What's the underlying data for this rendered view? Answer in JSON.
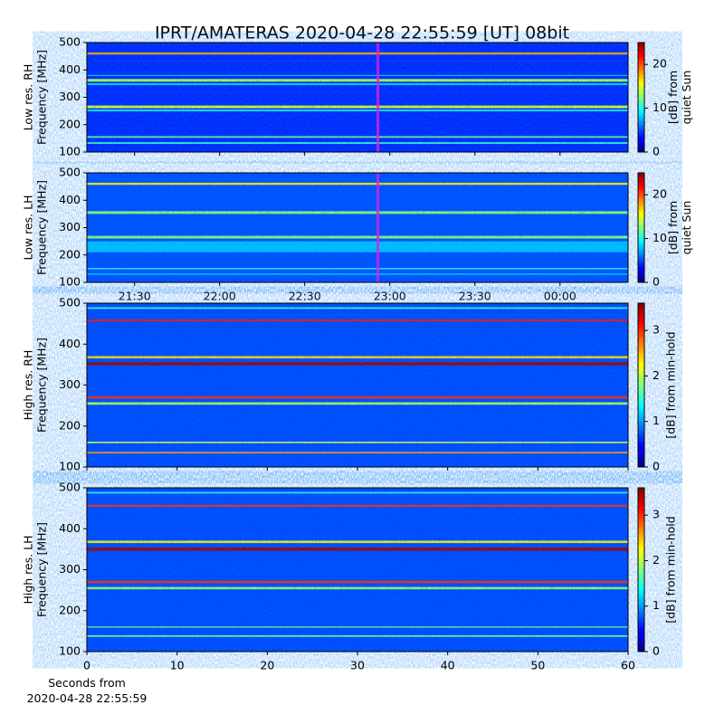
{
  "chart_data": [
    {
      "type": "heatmap",
      "title": "IPRT/AMATERAS 2020-04-28 22:55:59 [UT]   08bit",
      "ylabel": [
        "Low res. RH",
        "Frequency [MHz]"
      ],
      "ylim": [
        100,
        500
      ],
      "yticks": [
        100,
        200,
        300,
        400,
        500
      ],
      "clabel": [
        "[dB] from",
        "quiet Sun"
      ],
      "clim": [
        0,
        25
      ],
      "cticks": [
        0,
        10,
        20
      ],
      "background": 4,
      "bands": [
        {
          "freq": 460,
          "width": 8,
          "value": 18
        },
        {
          "freq": 362,
          "width": 10,
          "value": 14
        },
        {
          "freq": 348,
          "width": 6,
          "value": 9
        },
        {
          "freq": 265,
          "width": 10,
          "value": 15
        },
        {
          "freq": 252,
          "width": 6,
          "value": 10
        },
        {
          "freq": 155,
          "width": 6,
          "value": 12
        },
        {
          "freq": 133,
          "width": 6,
          "value": 11
        },
        {
          "freq": 380,
          "width": 3,
          "value": 9
        }
      ]
    },
    {
      "type": "heatmap",
      "ylabel": [
        "Low res. LH",
        "Frequency [MHz]"
      ],
      "ylim": [
        100,
        500
      ],
      "yticks": [
        100,
        200,
        300,
        400,
        500
      ],
      "clabel": [
        "[dB] from",
        "quiet Sun"
      ],
      "clim": [
        0,
        25
      ],
      "cticks": [
        0,
        10,
        20
      ],
      "background": 5,
      "xlim": [
        21.22,
        24.4
      ],
      "xticks": [
        {
          "value": 21.5,
          "label": "21:30"
        },
        {
          "value": 22,
          "label": "22:00"
        },
        {
          "value": 22.5,
          "label": "22:30"
        },
        {
          "value": 23,
          "label": "23:00"
        },
        {
          "value": 23.5,
          "label": "23:30"
        },
        {
          "value": 24,
          "label": "00:00"
        }
      ],
      "cursor": 22.93,
      "bands": [
        {
          "freq": 460,
          "width": 8,
          "value": 16
        },
        {
          "freq": 355,
          "width": 10,
          "value": 13
        },
        {
          "freq": 265,
          "width": 10,
          "value": 13
        },
        {
          "freq": 230,
          "width": 40,
          "value": 8
        },
        {
          "freq": 150,
          "width": 5,
          "value": 10
        },
        {
          "freq": 130,
          "width": 4,
          "value": 9
        }
      ]
    },
    {
      "type": "heatmap",
      "ylabel": [
        "High res. RH",
        "Frequency [MHz]"
      ],
      "ylim": [
        100,
        500
      ],
      "yticks": [
        100,
        200,
        300,
        400,
        500
      ],
      "clabel": [
        "[dB] from min-hold"
      ],
      "clim": [
        0,
        3.6
      ],
      "cticks": [
        0,
        1,
        2,
        3
      ],
      "background": 0.7,
      "bands": [
        {
          "freq": 488,
          "width": 4,
          "value": 1.6
        },
        {
          "freq": 458,
          "width": 5,
          "value": 3.1
        },
        {
          "freq": 368,
          "width": 6,
          "value": 2.4
        },
        {
          "freq": 352,
          "width": 8,
          "value": 3.5
        },
        {
          "freq": 270,
          "width": 6,
          "value": 3.0
        },
        {
          "freq": 255,
          "width": 6,
          "value": 2.0
        },
        {
          "freq": 160,
          "width": 4,
          "value": 2.0
        },
        {
          "freq": 135,
          "width": 4,
          "value": 2.6
        }
      ]
    },
    {
      "type": "heatmap",
      "ylabel": [
        "High res. LH",
        "Frequency [MHz]"
      ],
      "ylim": [
        100,
        500
      ],
      "yticks": [
        100,
        200,
        300,
        400,
        500
      ],
      "clabel": [
        "[dB] from min-hold"
      ],
      "clim": [
        0,
        3.6
      ],
      "cticks": [
        0,
        1,
        2,
        3
      ],
      "background": 0.7,
      "xlabel": "Seconds from\n2020-04-28 22:55:59",
      "xlim": [
        0,
        60
      ],
      "xticks": [
        0,
        10,
        20,
        30,
        40,
        50,
        60
      ],
      "bands": [
        {
          "freq": 488,
          "width": 4,
          "value": 1.5
        },
        {
          "freq": 456,
          "width": 5,
          "value": 3.0
        },
        {
          "freq": 368,
          "width": 6,
          "value": 2.3
        },
        {
          "freq": 350,
          "width": 8,
          "value": 3.5
        },
        {
          "freq": 270,
          "width": 6,
          "value": 3.0
        },
        {
          "freq": 255,
          "width": 6,
          "value": 1.9
        },
        {
          "freq": 160,
          "width": 3,
          "value": 1.8
        },
        {
          "freq": 138,
          "width": 4,
          "value": 1.8
        }
      ]
    }
  ]
}
